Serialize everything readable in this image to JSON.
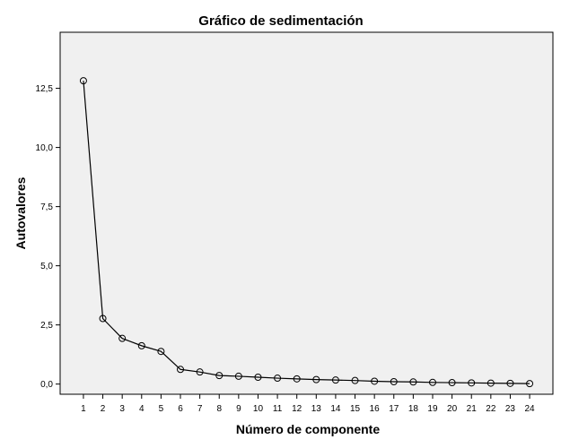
{
  "chart_data": {
    "type": "line",
    "title": "Gráfico de sedimentación",
    "xlabel": "Número de componente",
    "ylabel": "Autovalores",
    "x": [
      1,
      2,
      3,
      4,
      5,
      6,
      7,
      8,
      9,
      10,
      11,
      12,
      13,
      14,
      15,
      16,
      17,
      18,
      19,
      20,
      21,
      22,
      23,
      24
    ],
    "x_tick_labels": [
      "1",
      "2",
      "3",
      "4",
      "5",
      "6",
      "7",
      "8",
      "9",
      "10",
      "11",
      "12",
      "13",
      "14",
      "15",
      "16",
      "17",
      "18",
      "19",
      "20",
      "21",
      "22",
      "23",
      "24"
    ],
    "series": [
      {
        "values": [
          12.82,
          2.77,
          1.93,
          1.62,
          1.38,
          0.62,
          0.51,
          0.36,
          0.33,
          0.29,
          0.25,
          0.22,
          0.19,
          0.17,
          0.15,
          0.12,
          0.1,
          0.09,
          0.07,
          0.06,
          0.05,
          0.04,
          0.03,
          0.02
        ]
      }
    ],
    "y_ticks": [
      0,
      2.5,
      5,
      7.5,
      10,
      12.5
    ],
    "y_tick_labels": [
      "0,0",
      "2,5",
      "5,0",
      "7,5",
      "10,0",
      "12,5"
    ],
    "ylim": [
      -0.43,
      14.87
    ],
    "xlim": [
      -0.2,
      25.2
    ],
    "grid": false,
    "plot_background": "#f0f0f0",
    "line_color": "#000000",
    "marker": "open-circle"
  }
}
